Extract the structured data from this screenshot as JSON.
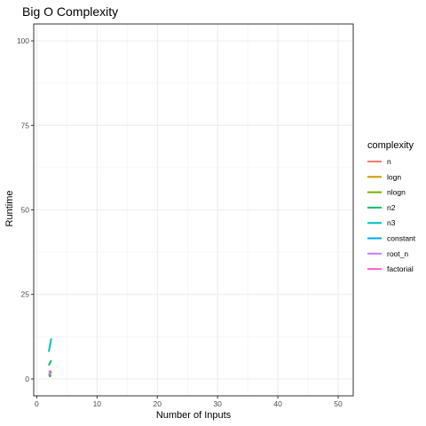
{
  "chart_data": {
    "type": "line",
    "title": "Big O Complexity",
    "xlabel": "Number of Inputs",
    "ylabel": "Runtime",
    "xlim": [
      -0.5,
      52.5
    ],
    "ylim": [
      -5,
      105
    ],
    "x_ticks": [
      0,
      10,
      20,
      30,
      40,
      50
    ],
    "x_tick_labels": [
      "0",
      "10",
      "20",
      "30",
      "40",
      "50"
    ],
    "y_ticks": [
      0,
      25,
      50,
      75,
      100
    ],
    "y_tick_labels": [
      "0",
      "25",
      "50",
      "75",
      "100"
    ],
    "grid": true,
    "legend_title": "complexity",
    "legend_position": "right",
    "series": [
      {
        "name": "n",
        "color": "#F8766D",
        "x": [
          2,
          2.4
        ],
        "y": [
          1,
          2
        ]
      },
      {
        "name": "logn",
        "color": "#CD9600",
        "x": [
          2,
          2.4
        ],
        "y": [
          0.7,
          0.9
        ]
      },
      {
        "name": "nlogn",
        "color": "#7CAE00",
        "x": [
          2,
          2.4
        ],
        "y": [
          1.4,
          2.1
        ]
      },
      {
        "name": "n2",
        "color": "#00BE67",
        "x": [
          2,
          2.4
        ],
        "y": [
          4,
          5.5
        ]
      },
      {
        "name": "n3",
        "color": "#00BFC4",
        "x": [
          2,
          2.4
        ],
        "y": [
          8,
          12
        ]
      },
      {
        "name": "constant",
        "color": "#00A9FF",
        "x": [
          2,
          2.4
        ],
        "y": [
          1,
          1
        ]
      },
      {
        "name": "root_n",
        "color": "#C77CFF",
        "x": [
          2,
          2.4
        ],
        "y": [
          1.4,
          1.5
        ]
      },
      {
        "name": "factorial",
        "color": "#FF61CC",
        "x": [
          2,
          2.4
        ],
        "y": [
          2,
          2.5
        ]
      }
    ]
  }
}
